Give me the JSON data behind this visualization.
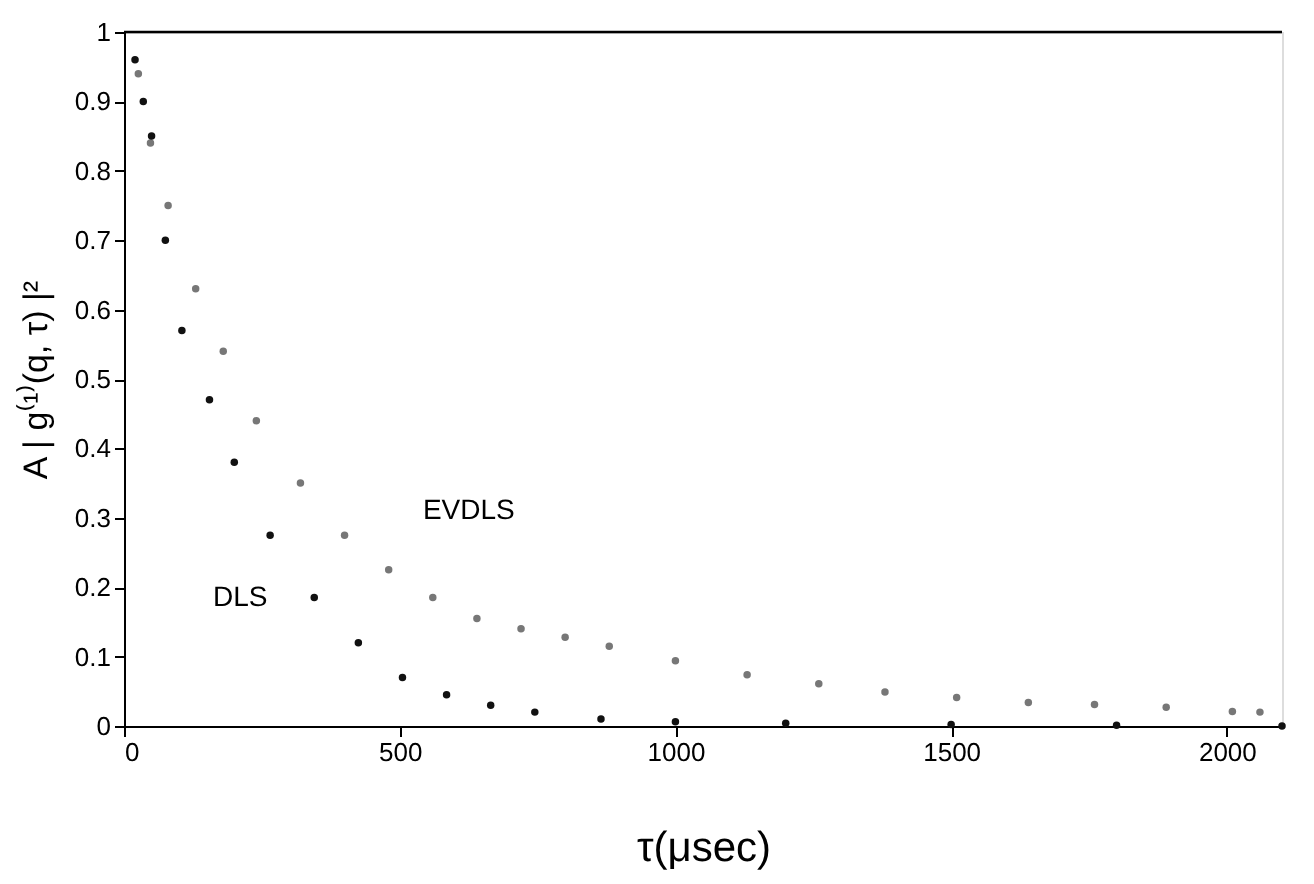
{
  "chart_data": {
    "type": "scatter",
    "xlabel": "τ(μsec)",
    "ylabel": "A | g⁽¹⁾(q, τ) |²",
    "xlim": [
      0,
      2100
    ],
    "xticks": [
      0,
      500,
      1000,
      1500,
      2000
    ],
    "ylim": [
      0,
      1
    ],
    "yticks": [
      0,
      0.1,
      0.2,
      0.3,
      0.4,
      0.5,
      0.6,
      0.7,
      0.8,
      0.9,
      1
    ],
    "grid": false,
    "legend": false,
    "marker": "circle",
    "ref_lines": [
      {
        "axis": "y",
        "value": 1,
        "label": null,
        "color": "#000000"
      }
    ],
    "series": [
      {
        "name": "EVDLS",
        "color": "#777777",
        "x": [
          26,
          48,
          80,
          130,
          180,
          240,
          320,
          400,
          480,
          560,
          640,
          720,
          800,
          880,
          1000,
          1130,
          1260,
          1380,
          1510,
          1640,
          1760,
          1890,
          2010,
          2060
        ],
        "values": [
          0.94,
          0.84,
          0.75,
          0.63,
          0.54,
          0.44,
          0.35,
          0.275,
          0.225,
          0.185,
          0.155,
          0.14,
          0.128,
          0.115,
          0.094,
          0.074,
          0.061,
          0.049,
          0.041,
          0.034,
          0.031,
          0.027,
          0.021,
          0.02
        ]
      },
      {
        "name": "DLS",
        "color": "#111111",
        "x": [
          20,
          35,
          50,
          75,
          105,
          155,
          200,
          265,
          345,
          425,
          505,
          585,
          665,
          745,
          865,
          1000,
          1200,
          1500,
          1800,
          2100
        ],
        "values": [
          0.96,
          0.9,
          0.85,
          0.7,
          0.57,
          0.47,
          0.38,
          0.275,
          0.185,
          0.12,
          0.07,
          0.045,
          0.03,
          0.02,
          0.01,
          0.006,
          0.004,
          0.002,
          0.001,
          0
        ]
      }
    ]
  }
}
